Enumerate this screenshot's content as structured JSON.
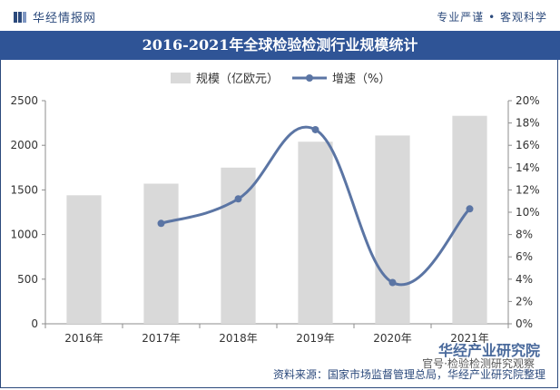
{
  "header": {
    "logo_text": "华经情报网",
    "slogan": "专业严谨 • 客观科学"
  },
  "footer": {
    "source": "资料来源：国家市场监督管理总局，华经产业研究院整理",
    "watermark_name": "华经产业研究院",
    "watermark_sub": "官号·检验检测研究观察"
  },
  "chart_data": {
    "type": "bar",
    "title": "2016-2021年全球检验检测行业规模统计",
    "categories": [
      "2016年",
      "2017年",
      "2018年",
      "2019年",
      "2020年",
      "2021年"
    ],
    "series": [
      {
        "name": "规模（亿欧元）",
        "kind": "bar",
        "axis": "left",
        "values": [
          1440,
          1570,
          1750,
          2040,
          2110,
          2330
        ]
      },
      {
        "name": "增速（%）",
        "kind": "line",
        "axis": "right",
        "values": [
          null,
          9.0,
          11.2,
          17.4,
          3.7,
          10.3
        ]
      }
    ],
    "y_left": {
      "min": 0,
      "max": 2500,
      "ticks": [
        "0",
        "500",
        "1000",
        "1500",
        "2000",
        "2500"
      ]
    },
    "y_right": {
      "min": 0,
      "max": 20,
      "ticks": [
        "0%",
        "2%",
        "4%",
        "6%",
        "8%",
        "10%",
        "12%",
        "14%",
        "16%",
        "18%",
        "20%"
      ]
    },
    "grid": false,
    "legend_position": "top-center",
    "colors": {
      "bar": "#d9d9d9",
      "line": "#5b75a4",
      "title_bg": "#2f5496",
      "brand": "#2c4a7c"
    }
  }
}
